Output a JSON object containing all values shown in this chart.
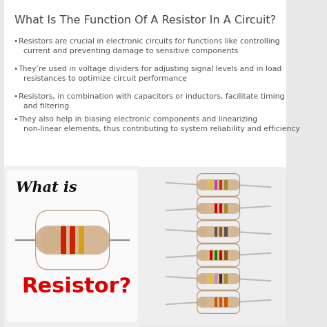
{
  "title": "What Is The Function Of A Resistor In A Circuit?",
  "title_fontsize": 11.5,
  "title_color": "#444444",
  "bullet_points": [
    "Resistors are crucial in electronic circuits for functions like controlling\n  current and preventing damage to sensitive components",
    "They’re used in voltage dividers for adjusting signal levels and in load\n  resistances to optimize circuit performance",
    "Resistors, in combination with capacitors or inductors, facilitate timing\n  and filtering",
    "They also help in biasing electronic components and linearizing\n  non-linear elements, thus contributing to system reliability and efficiency"
  ],
  "bullet_fontsize": 7.8,
  "bullet_color": "#555555",
  "box_bg": "#ffffff",
  "box_edge": "#cccccc",
  "bottom_left_bg_top": "#ffffff",
  "bottom_left_bg_bot": "#cccccc",
  "what_is_text": "What is",
  "resistor_text": "Resistor?",
  "resistor_color": "#dd0000",
  "main_bg": "#e8e8e8",
  "resistor_body_color": "#d4b896",
  "wire_color": "#aaaaaa",
  "small_resistors": [
    {
      "stripes": [
        "#e8c020",
        "#bb44bb",
        "#cc3300",
        "#aa8833"
      ]
    },
    {
      "stripes": [
        "#d4b896",
        "#cc0000",
        "#cc0000",
        "#aa8833"
      ]
    },
    {
      "stripes": [
        "#d4b896",
        "#555555",
        "#885522",
        "#555555"
      ]
    },
    {
      "stripes": [
        "#cc0000",
        "#008800",
        "#cc0000",
        "#885522"
      ]
    },
    {
      "stripes": [
        "#e8c020",
        "#cc88bb",
        "#333333",
        "#aa8833"
      ]
    },
    {
      "stripes": [
        "#d4b896",
        "#cc5500",
        "#cc5500",
        "#cc5500"
      ]
    }
  ]
}
